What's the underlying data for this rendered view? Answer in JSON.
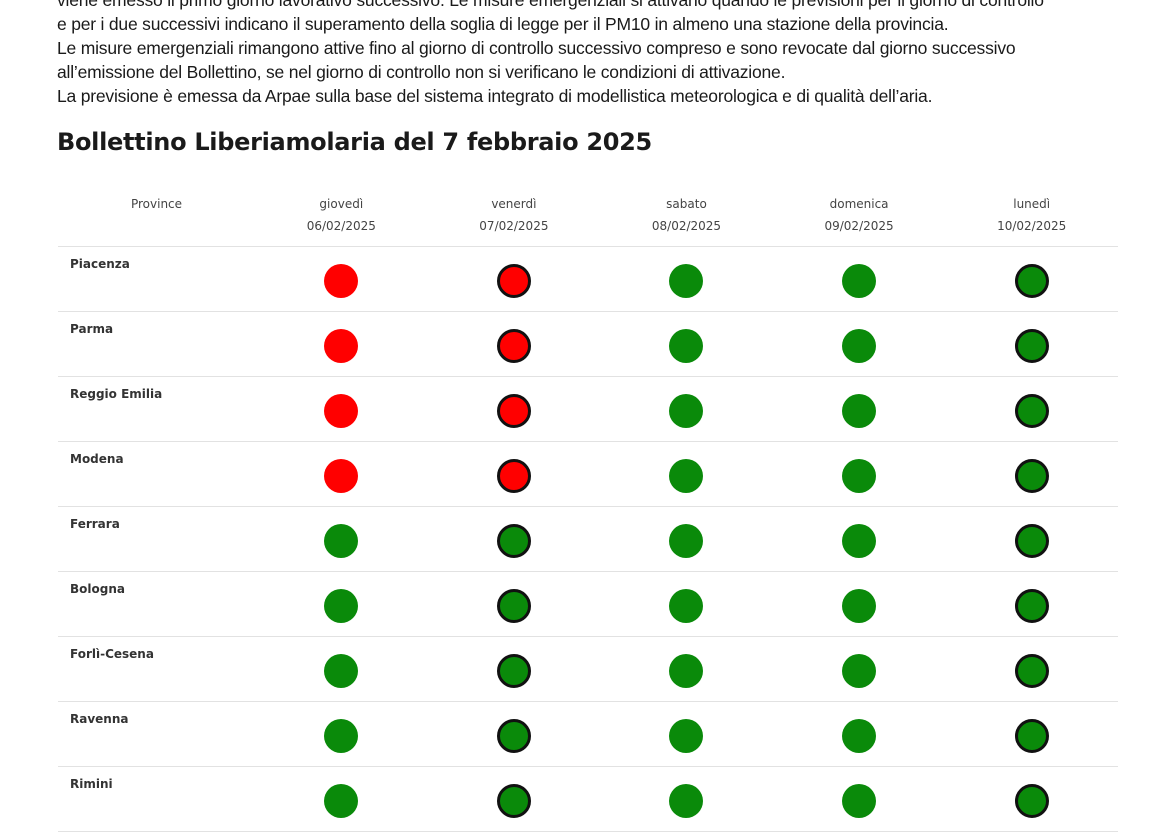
{
  "intro": [
    "viene emesso il primo giorno lavorativo successivo. Le misure emergenziali si attivano quando le previsioni per il giorno di controllo",
    "e per i due successivi indicano il superamento della soglia di legge per il PM10 in almeno una stazione della provincia.",
    "Le misure emergenziali rimangono attive fino al giorno di controllo successivo compreso e sono revocate dal giorno successivo",
    "all’emissione del Bollettino, se nel giorno di controllo non si verificano le condizioni di attivazione.",
    "La previsione è emessa da Arpae sulla base del sistema integrato di modellistica meteorologica e di qualità dell’aria."
  ],
  "title": "Bollettino Liberiamolaria del 7 febbraio 2025",
  "colors": {
    "red": "#ff0000",
    "green": "#0a8a0a"
  },
  "table": {
    "province_header": "Province",
    "days": [
      {
        "day": "giovedì",
        "date": "06/02/2025",
        "outlined": false
      },
      {
        "day": "venerdì",
        "date": "07/02/2025",
        "outlined": true
      },
      {
        "day": "sabato",
        "date": "08/02/2025",
        "outlined": false
      },
      {
        "day": "domenica",
        "date": "09/02/2025",
        "outlined": false
      },
      {
        "day": "lunedì",
        "date": "10/02/2025",
        "outlined": true
      }
    ],
    "rows": [
      {
        "name": "Piacenza",
        "status": [
          "red",
          "red",
          "green",
          "green",
          "green"
        ]
      },
      {
        "name": "Parma",
        "status": [
          "red",
          "red",
          "green",
          "green",
          "green"
        ]
      },
      {
        "name": "Reggio Emilia",
        "status": [
          "red",
          "red",
          "green",
          "green",
          "green"
        ]
      },
      {
        "name": "Modena",
        "status": [
          "red",
          "red",
          "green",
          "green",
          "green"
        ]
      },
      {
        "name": "Ferrara",
        "status": [
          "green",
          "green",
          "green",
          "green",
          "green"
        ]
      },
      {
        "name": "Bologna",
        "status": [
          "green",
          "green",
          "green",
          "green",
          "green"
        ]
      },
      {
        "name": "Forlì-Cesena",
        "status": [
          "green",
          "green",
          "green",
          "green",
          "green"
        ]
      },
      {
        "name": "Ravenna",
        "status": [
          "green",
          "green",
          "green",
          "green",
          "green"
        ]
      },
      {
        "name": "Rimini",
        "status": [
          "green",
          "green",
          "green",
          "green",
          "green"
        ]
      }
    ]
  }
}
